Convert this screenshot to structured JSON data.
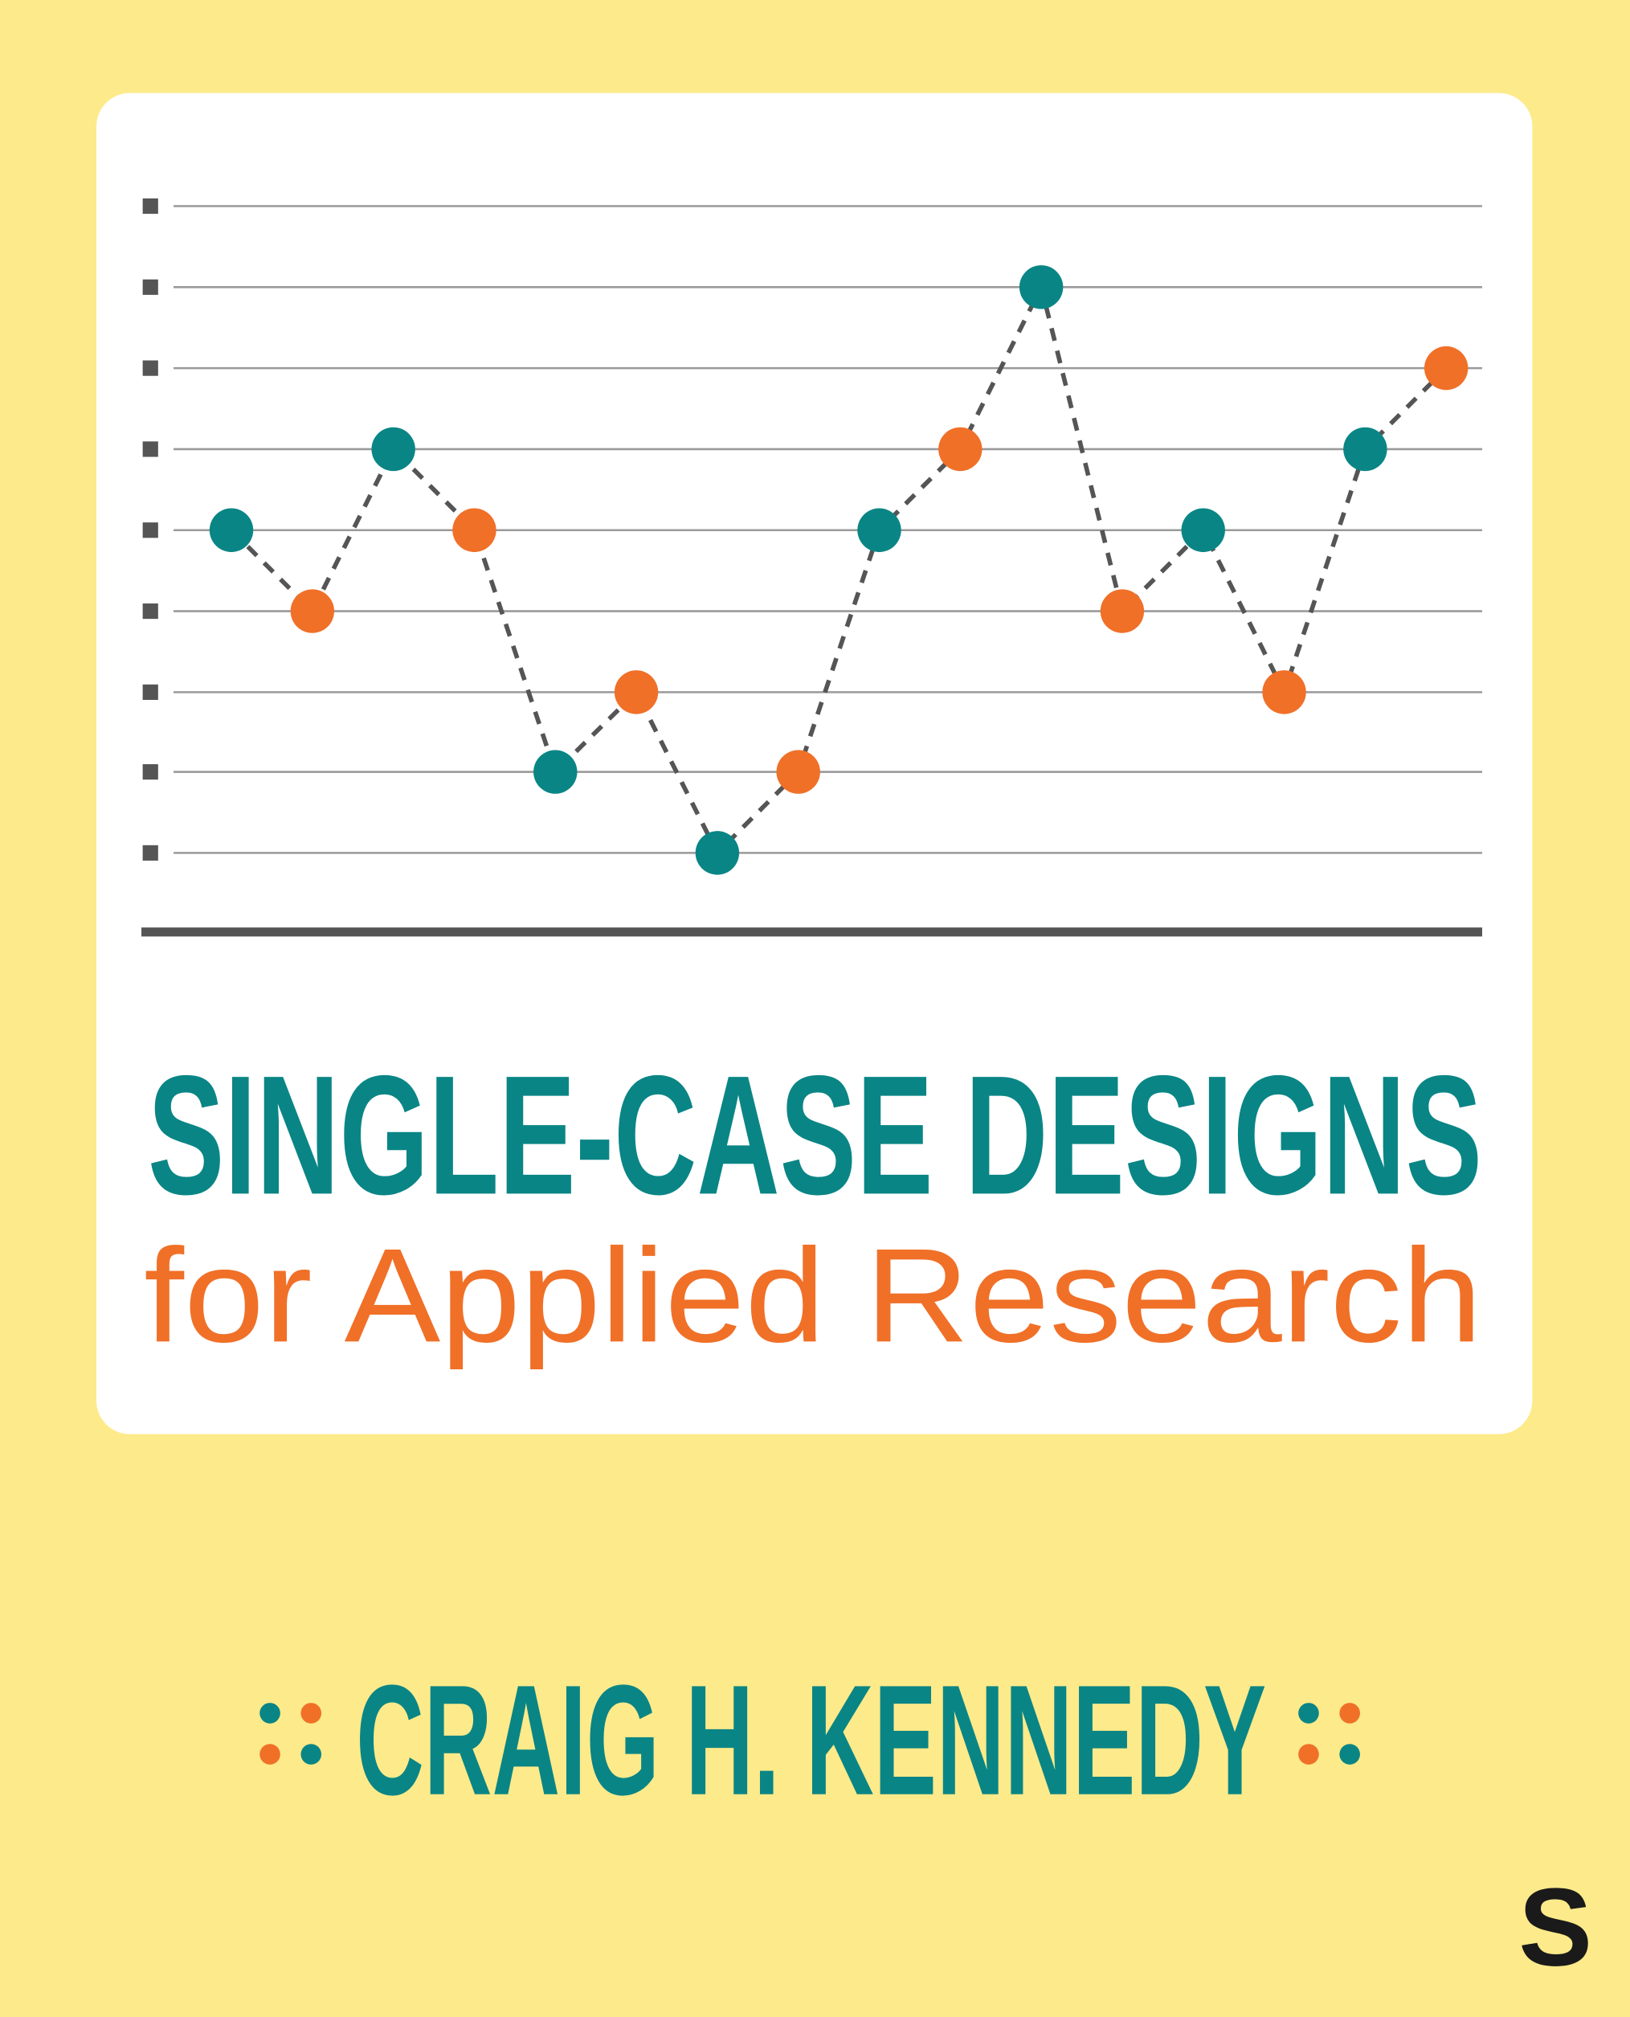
{
  "cover": {
    "title": "SINGLE-CASE DESIGNS",
    "subtitle": "for Applied Research",
    "author": "CRAIG H. KENNEDY",
    "publisher_logo": "S"
  }
}
